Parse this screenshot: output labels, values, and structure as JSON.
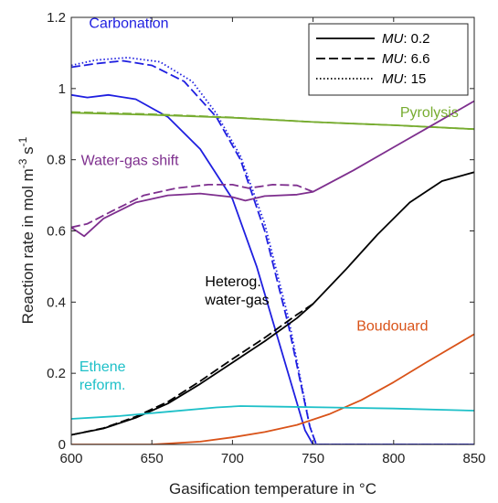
{
  "chart_data": {
    "type": "line",
    "xlabel": "Gasification temperature in °C",
    "ylabel": "Reaction rate in mol m",
    "ylabel_sup1": "-3",
    "ylabel_mid": " s",
    "ylabel_sup2": "-1",
    "xlim": [
      600,
      850
    ],
    "ylim": [
      0,
      1.2
    ],
    "xticks": [
      600,
      650,
      700,
      750,
      800,
      850
    ],
    "yticks": [
      0,
      0.2,
      0.4,
      0.6,
      0.8,
      1,
      1.2
    ],
    "ytick_labels": [
      "0",
      "0.2",
      "0.4",
      "0.6",
      "0.8",
      "1",
      "1.2"
    ],
    "grid": false,
    "legend_position": "top-right",
    "legend": [
      {
        "var": "MU",
        "value": ": 0.2",
        "style": "solid"
      },
      {
        "var": "MU",
        "value": ": 6.6",
        "style": "dashed"
      },
      {
        "var": "MU",
        "value": ": 15",
        "style": "dotted"
      }
    ],
    "colors": {
      "carbonation": "#1f1fe0",
      "pyrolysis": "#77ac30",
      "wgs": "#7e2f8e",
      "heterog": "#000000",
      "boudouard": "#d95319",
      "ethene": "#1ec0c8"
    },
    "annotations": [
      {
        "key": "carbonation",
        "lines": [
          "Carbonation"
        ],
        "x": 611,
        "y": 1.17
      },
      {
        "key": "pyrolysis",
        "lines": [
          "Pyrolysis"
        ],
        "x": 804,
        "y": 0.92
      },
      {
        "key": "wgs",
        "lines": [
          "Water-gas shift"
        ],
        "x": 606,
        "y": 0.785
      },
      {
        "key": "heterog",
        "lines": [
          "Heterog.",
          "water-gas"
        ],
        "x": 683,
        "y": 0.445
      },
      {
        "key": "boudouard",
        "lines": [
          "Boudouard"
        ],
        "x": 777,
        "y": 0.32
      },
      {
        "key": "ethene",
        "lines": [
          "Ethene",
          "reform."
        ],
        "x": 605,
        "y": 0.205
      }
    ],
    "series": [
      {
        "key": "carbonation",
        "style": "solid",
        "x": [
          600,
          610,
          623,
          640,
          660,
          680,
          700,
          715,
          730,
          745,
          750,
          850
        ],
        "y": [
          0.982,
          0.975,
          0.982,
          0.97,
          0.92,
          0.83,
          0.69,
          0.5,
          0.27,
          0.04,
          0,
          0
        ]
      },
      {
        "key": "carbonation",
        "style": "dashed",
        "x": [
          600,
          615,
          632,
          650,
          670,
          690,
          705,
          720,
          735,
          748,
          752,
          850
        ],
        "y": [
          1.06,
          1.07,
          1.078,
          1.065,
          1.02,
          0.92,
          0.8,
          0.6,
          0.33,
          0.05,
          0,
          0
        ]
      },
      {
        "key": "carbonation",
        "style": "dotted",
        "x": [
          600,
          615,
          635,
          655,
          675,
          690,
          705,
          720,
          735,
          748,
          752,
          850
        ],
        "y": [
          1.065,
          1.08,
          1.087,
          1.075,
          1.02,
          0.93,
          0.81,
          0.62,
          0.35,
          0.05,
          0,
          0
        ]
      },
      {
        "key": "pyrolysis",
        "style": "solid",
        "x": [
          600,
          650,
          700,
          750,
          800,
          850
        ],
        "y": [
          0.932,
          0.926,
          0.918,
          0.906,
          0.897,
          0.886
        ]
      },
      {
        "key": "pyrolysis",
        "style": "dashed",
        "x": [
          600,
          650,
          700,
          750,
          800,
          850
        ],
        "y": [
          0.934,
          0.928,
          0.919,
          0.906,
          0.897,
          0.886
        ]
      },
      {
        "key": "wgs",
        "style": "solid",
        "x": [
          600,
          608,
          620,
          640,
          660,
          680,
          700,
          708,
          720,
          740,
          750,
          775,
          800,
          825,
          850
        ],
        "y": [
          0.61,
          0.585,
          0.635,
          0.68,
          0.7,
          0.705,
          0.695,
          0.685,
          0.698,
          0.702,
          0.71,
          0.77,
          0.835,
          0.9,
          0.965
        ]
      },
      {
        "key": "wgs",
        "style": "dashed",
        "x": [
          600,
          610,
          625,
          645,
          665,
          685,
          700,
          710,
          725,
          740,
          750
        ],
        "y": [
          0.61,
          0.62,
          0.655,
          0.7,
          0.72,
          0.73,
          0.73,
          0.72,
          0.73,
          0.728,
          0.71
        ]
      },
      {
        "key": "heterog",
        "style": "solid",
        "x": [
          600,
          620,
          640,
          660,
          680,
          700,
          720,
          740,
          750,
          770,
          790,
          810,
          830,
          850
        ],
        "y": [
          0.027,
          0.045,
          0.075,
          0.115,
          0.17,
          0.23,
          0.29,
          0.355,
          0.395,
          0.49,
          0.59,
          0.68,
          0.74,
          0.765
        ]
      },
      {
        "key": "heterog",
        "style": "dashed",
        "x": [
          600,
          620,
          640,
          660,
          680,
          700,
          720,
          740,
          750
        ],
        "y": [
          0.027,
          0.046,
          0.078,
          0.12,
          0.178,
          0.24,
          0.3,
          0.365,
          0.395
        ]
      },
      {
        "key": "boudouard",
        "style": "solid",
        "x": [
          600,
          650,
          680,
          700,
          720,
          740,
          760,
          780,
          800,
          820,
          850
        ],
        "y": [
          0,
          0,
          0.008,
          0.02,
          0.035,
          0.055,
          0.085,
          0.125,
          0.175,
          0.23,
          0.31
        ]
      },
      {
        "key": "ethene",
        "style": "solid",
        "x": [
          600,
          630,
          660,
          690,
          705,
          730,
          760,
          800,
          850
        ],
        "y": [
          0.072,
          0.08,
          0.092,
          0.104,
          0.108,
          0.106,
          0.104,
          0.101,
          0.095
        ]
      }
    ]
  }
}
